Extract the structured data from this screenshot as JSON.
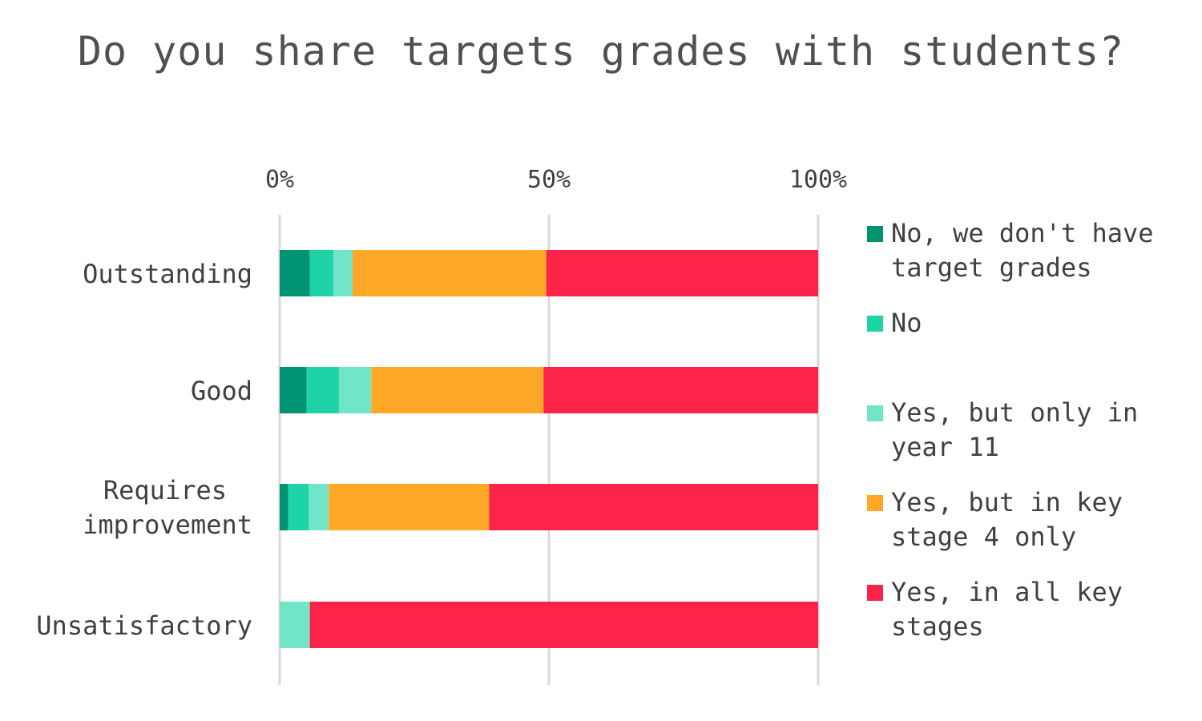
{
  "chart_data": {
    "type": "bar",
    "orientation": "horizontal",
    "stacked": true,
    "normalized_percent": true,
    "title": "Do you share targets grades with students?",
    "categories": [
      "Outstanding",
      "Good",
      "Requires improvement",
      "Unsatisfactory"
    ],
    "x_ticks": [
      "0%",
      "50%",
      "100%"
    ],
    "xlim": [
      0,
      100
    ],
    "x_axis_position": "top",
    "grid": true,
    "legend_position": "right",
    "series": [
      {
        "name": "No, we don't have target grades",
        "color": "#009473",
        "values": [
          5.6,
          5.0,
          1.6,
          0
        ]
      },
      {
        "name": "No",
        "color": "#1DD3A7",
        "values": [
          4.4,
          6.0,
          3.8,
          0
        ]
      },
      {
        "name": "Yes, but only in year 11",
        "color": "#71E5C8",
        "values": [
          3.5,
          6.0,
          3.7,
          5.6
        ]
      },
      {
        "name": "Yes, but in key stage 4 only",
        "color": "#FFA828",
        "values": [
          36.0,
          32.0,
          29.8,
          0
        ]
      },
      {
        "name": "Yes, in all key stages",
        "color": "#FB2348",
        "values": [
          50.5,
          51.0,
          61.1,
          94.4
        ]
      }
    ]
  },
  "legend": [
    {
      "label": "No, we don't have target grades",
      "color": "#009473"
    },
    {
      "label": "No",
      "color": "#1DD3A7"
    },
    {
      "label": "Yes, but only in year 11",
      "color": "#71E5C8"
    },
    {
      "label": "Yes, but in key stage 4 only",
      "color": "#FFA828"
    },
    {
      "label": "Yes, in all key stages",
      "color": "#FB2348"
    }
  ]
}
